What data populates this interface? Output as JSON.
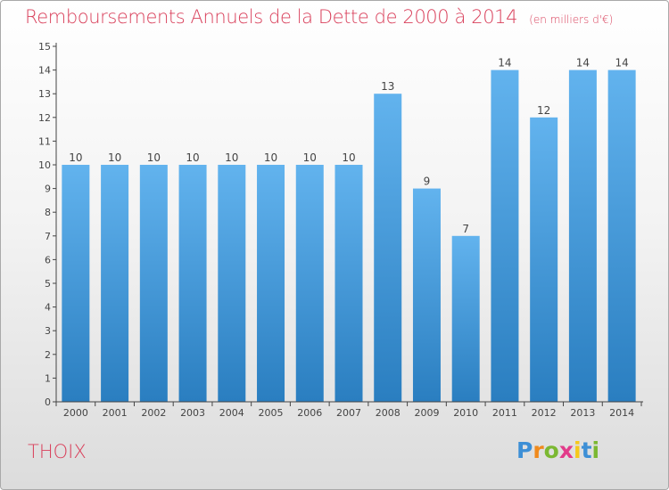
{
  "chart_data": {
    "type": "bar",
    "title": "Remboursements Annuels de la Dette de 2000 à 2014",
    "unit_label": "(en milliers d'€)",
    "categories": [
      "2000",
      "2001",
      "2002",
      "2003",
      "2004",
      "2005",
      "2006",
      "2007",
      "2008",
      "2009",
      "2010",
      "2011",
      "2012",
      "2013",
      "2014"
    ],
    "values": [
      10,
      10,
      10,
      10,
      10,
      10,
      10,
      10,
      13,
      9,
      7,
      14,
      12,
      14,
      14
    ],
    "yticks": [
      "0",
      "1",
      "2",
      "3",
      "4",
      "5",
      "6",
      "7",
      "8",
      "9",
      "10",
      "11",
      "12",
      "13",
      "14",
      "15"
    ],
    "ylim": [
      0,
      15
    ],
    "grid": false,
    "bar_color_top": "#62b3ee",
    "bar_color_bottom": "#2a7ec0"
  },
  "footer": {
    "place": "THOIX",
    "logo": {
      "letters": [
        "P",
        "r",
        "o",
        "x",
        "i",
        "t",
        "i"
      ],
      "colors": [
        "#3d8fd6",
        "#f08a1c",
        "#7bb832",
        "#e23b8a",
        "#f6c81a",
        "#3d8fd6",
        "#7bb832"
      ]
    }
  }
}
